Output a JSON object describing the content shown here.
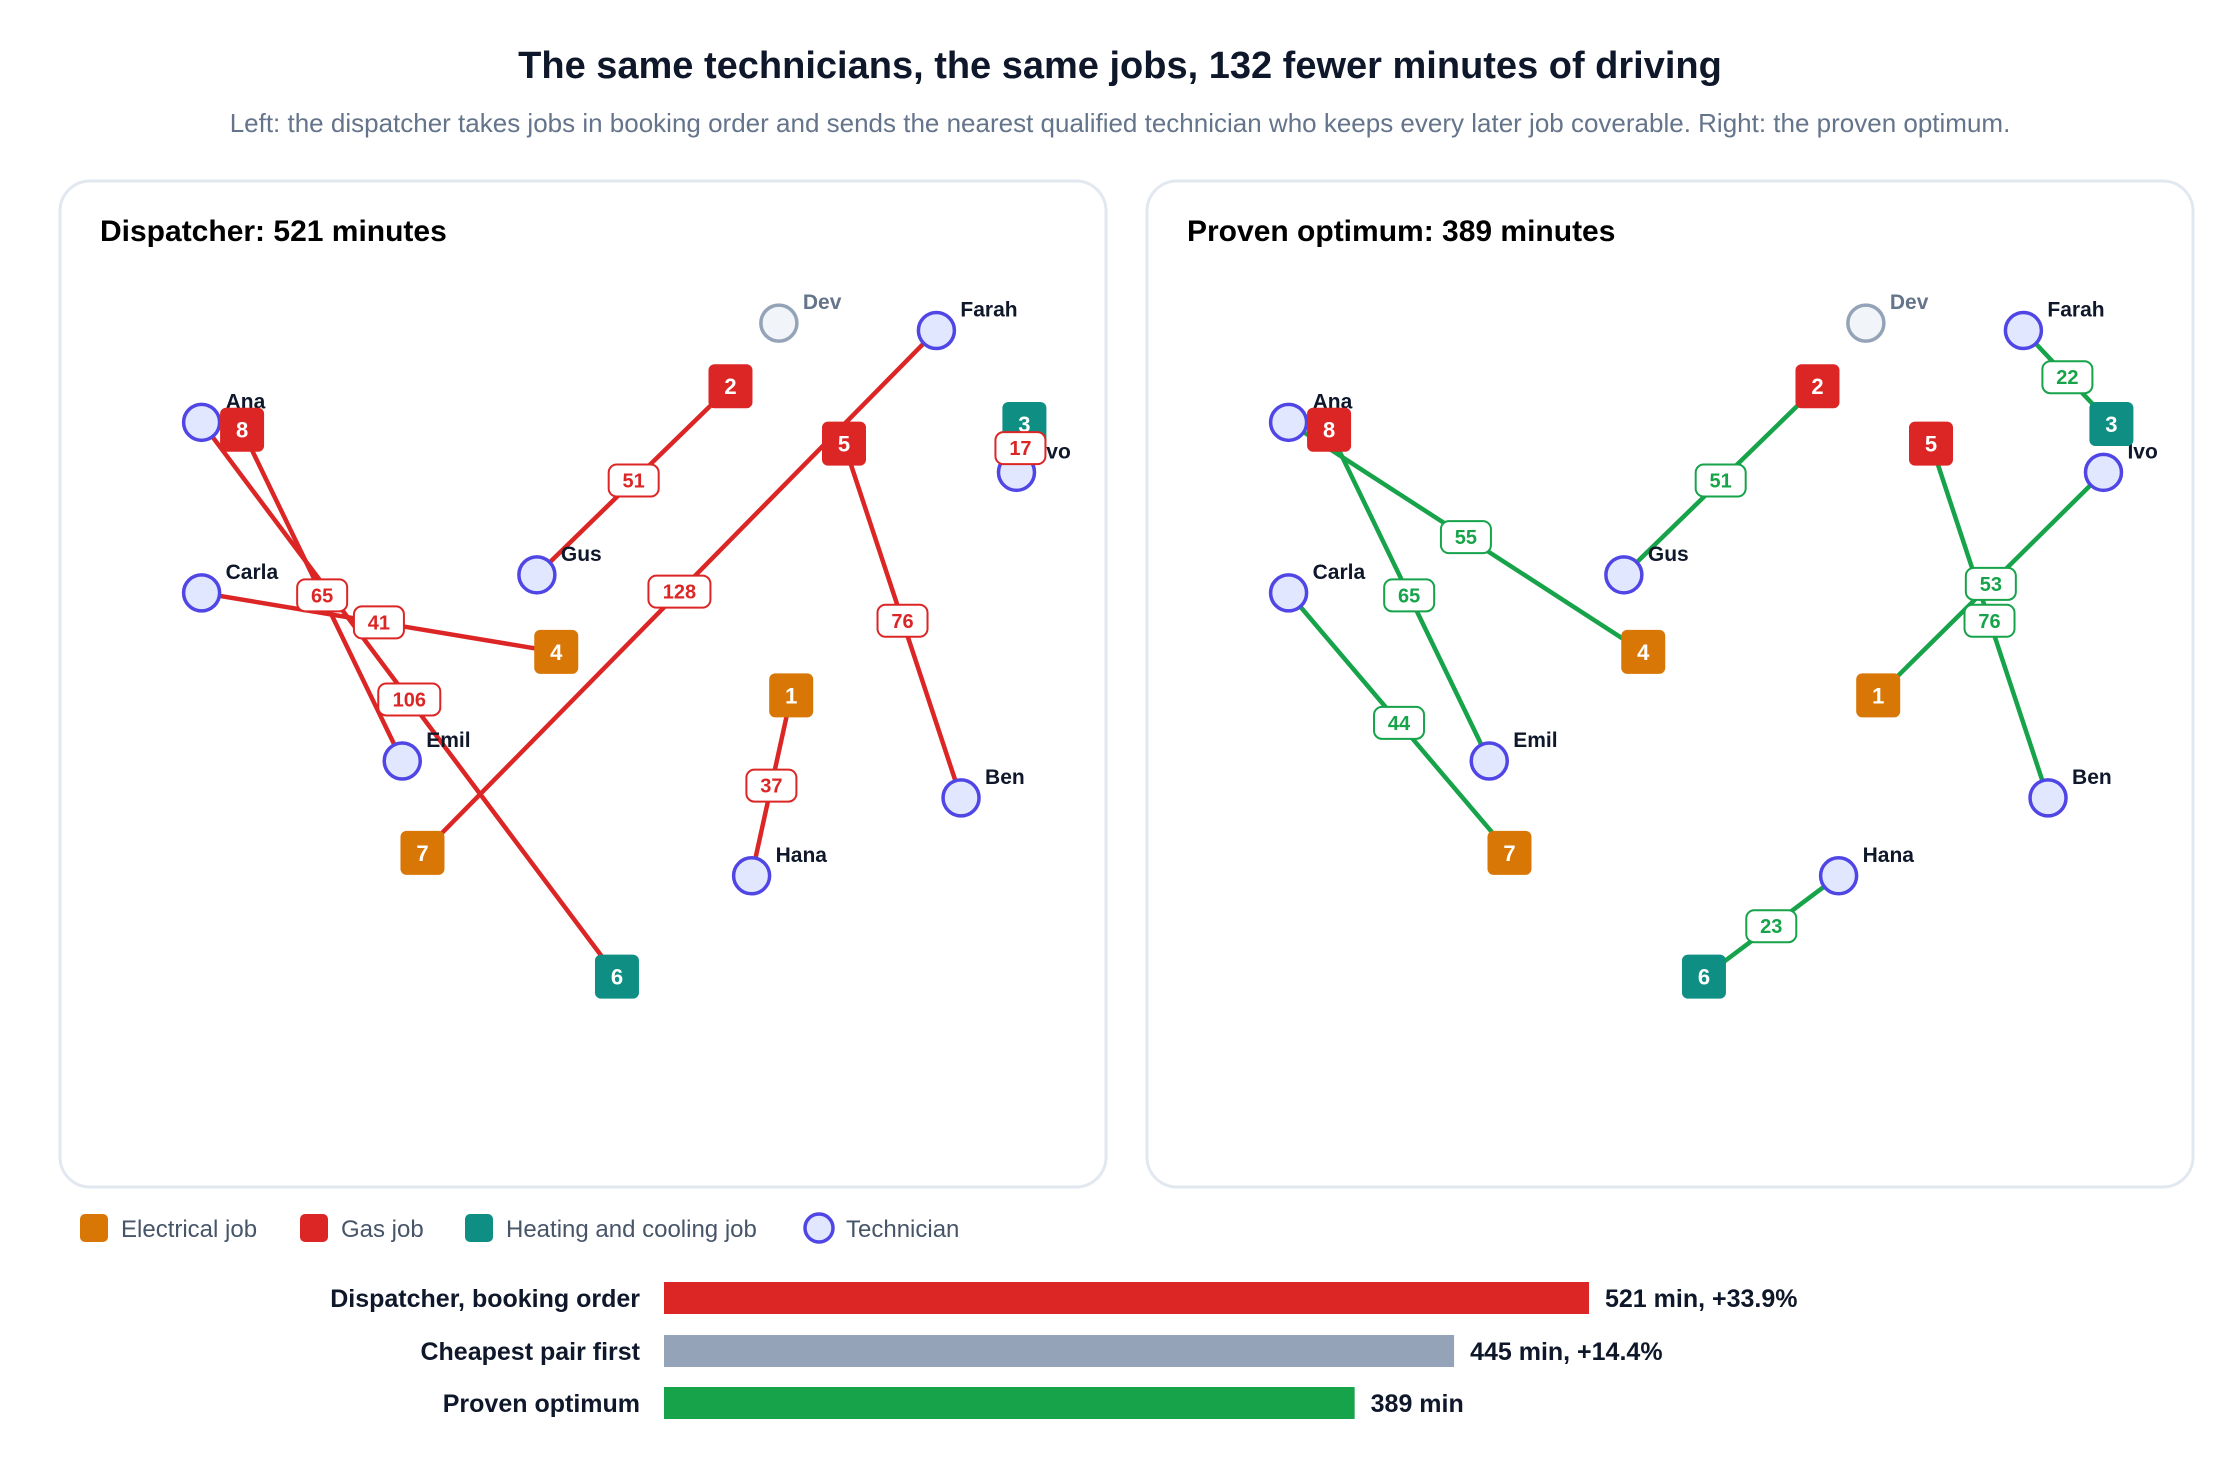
{
  "title": "The same technicians, the same jobs, 132 fewer minutes of driving",
  "subtitle": "Left: the dispatcher takes jobs in booking order and sends the nearest qualified technician who keeps every later job coverable. Right: the proven optimum.",
  "colors": {
    "electrical": "#d97706",
    "gas": "#dc2626",
    "hvac": "#0f8f84",
    "technician_stroke": "#4f46e5",
    "technician_fill": "#e0e7ff",
    "idle_stroke": "#94a3b8",
    "idle_fill": "#f1f5f9",
    "dispatcher": "#dc2626",
    "optimum": "#16a34a",
    "greedy": "#94a3b8"
  },
  "technicians": [
    {
      "id": "ana",
      "name": "Ana",
      "x": 2,
      "y": 17.6
    },
    {
      "id": "dev",
      "name": "Dev",
      "x": 67.6,
      "y": 5.5
    },
    {
      "id": "farah",
      "name": "Farah",
      "x": 85.5,
      "y": 6.4
    },
    {
      "id": "ivo",
      "name": "Ivo",
      "x": 94.6,
      "y": 23.7
    },
    {
      "id": "carla",
      "name": "Carla",
      "x": 2,
      "y": 38.4
    },
    {
      "id": "gus",
      "name": "Gus",
      "x": 40.1,
      "y": 36.2
    },
    {
      "id": "emil",
      "name": "Emil",
      "x": 24.8,
      "y": 58.9
    },
    {
      "id": "ben",
      "name": "Ben",
      "x": 88.3,
      "y": 63.4
    },
    {
      "id": "hana",
      "name": "Hana",
      "x": 64.5,
      "y": 72.9
    }
  ],
  "jobs": [
    {
      "id": "1",
      "label": "1",
      "type": "electrical",
      "x": 69,
      "y": 50.9
    },
    {
      "id": "2",
      "label": "2",
      "type": "gas",
      "x": 62.1,
      "y": 13.2
    },
    {
      "id": "3",
      "label": "3",
      "type": "hvac",
      "x": 95.5,
      "y": 17.8
    },
    {
      "id": "4",
      "label": "4",
      "type": "electrical",
      "x": 42.3,
      "y": 45.6
    },
    {
      "id": "5",
      "label": "5",
      "type": "gas",
      "x": 75,
      "y": 20.2
    },
    {
      "id": "6",
      "label": "6",
      "type": "hvac",
      "x": 49.2,
      "y": 85.2
    },
    {
      "id": "7",
      "label": "7",
      "type": "electrical",
      "x": 27.1,
      "y": 70.1
    },
    {
      "id": "8",
      "label": "8",
      "type": "gas",
      "x": 6.6,
      "y": 18.5
    }
  ],
  "panels": [
    {
      "title": "Dispatcher: 521 minutes",
      "color_key": "dispatcher",
      "assignments": [
        {
          "tech": "farah",
          "job": "7",
          "minutes": "128"
        },
        {
          "tech": "emil",
          "job": "8",
          "minutes": "65"
        },
        {
          "tech": "ana",
          "job": "6",
          "minutes": "106"
        },
        {
          "tech": "carla",
          "job": "4",
          "minutes": "41"
        },
        {
          "tech": "gus",
          "job": "2",
          "minutes": "51"
        },
        {
          "tech": "ben",
          "job": "5",
          "minutes": "76"
        },
        {
          "tech": "hana",
          "job": "1",
          "minutes": "37"
        },
        {
          "tech": "ivo",
          "job": "3",
          "minutes": "17"
        }
      ]
    },
    {
      "title": "Proven optimum: 389 minutes",
      "color_key": "optimum",
      "assignments": [
        {
          "tech": "farah",
          "job": "3",
          "minutes": "22"
        },
        {
          "tech": "gus",
          "job": "2",
          "minutes": "51"
        },
        {
          "tech": "ana",
          "job": "4",
          "minutes": "55"
        },
        {
          "tech": "emil",
          "job": "8",
          "minutes": "65"
        },
        {
          "tech": "ben",
          "job": "5",
          "minutes": "76"
        },
        {
          "tech": "ivo",
          "job": "1",
          "minutes": "53"
        },
        {
          "tech": "carla",
          "job": "7",
          "minutes": "44"
        },
        {
          "tech": "hana",
          "job": "6",
          "minutes": "23"
        }
      ]
    }
  ],
  "legend": [
    {
      "label": "Electrical job",
      "shape": "square",
      "color_key": "electrical"
    },
    {
      "label": "Gas job",
      "shape": "square",
      "color_key": "gas"
    },
    {
      "label": "Heating and cooling job",
      "shape": "square",
      "color_key": "hvac"
    },
    {
      "label": "Technician",
      "shape": "circle",
      "color_key": "technician_stroke"
    }
  ],
  "chart_data": {
    "type": "bar",
    "orientation": "horizontal",
    "categories": [
      "Dispatcher, booking order",
      "Cheapest pair first",
      "Proven optimum"
    ],
    "values": [
      521,
      445,
      389
    ],
    "value_labels": [
      "521 min, +33.9%",
      "445 min, +14.4%",
      "389 min"
    ],
    "color_keys": [
      "dispatcher",
      "greedy",
      "optimum"
    ],
    "xlim": [
      0,
      521
    ],
    "grid": false
  }
}
